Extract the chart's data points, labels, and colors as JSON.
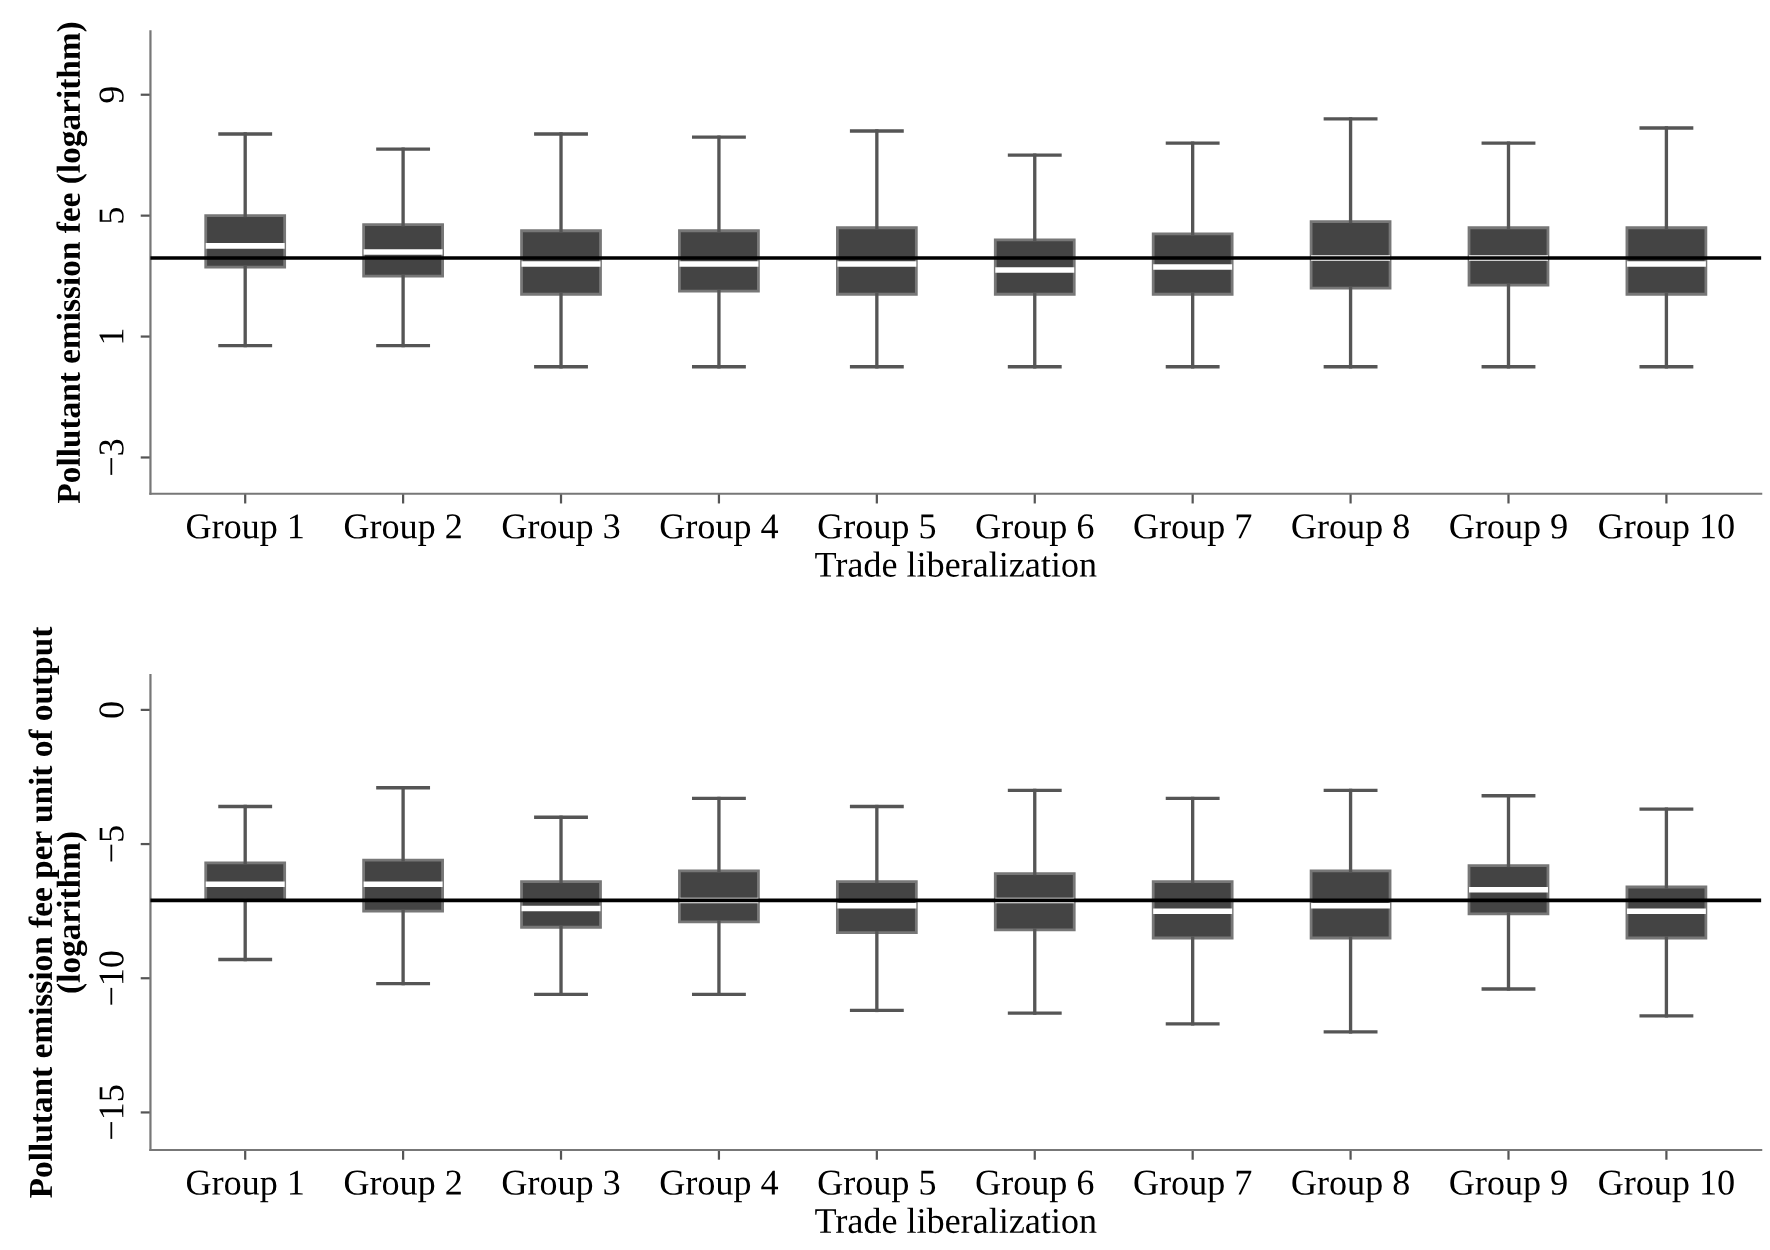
{
  "chart_data": [
    {
      "type": "box",
      "xlabel": "Trade liberalization",
      "ylabel": "Pollutant emission fee (logarithm)",
      "categories": [
        "Group 1",
        "Group 2",
        "Group 3",
        "Group 4",
        "Group 5",
        "Group 6",
        "Group 7",
        "Group 8",
        "Group 9",
        "Group 10"
      ],
      "boxes": [
        {
          "low": 0.7,
          "q1": 3.3,
          "median": 4.0,
          "q3": 5.0,
          "high": 7.7
        },
        {
          "low": 0.7,
          "q1": 3.0,
          "median": 3.8,
          "q3": 4.7,
          "high": 7.2
        },
        {
          "low": 0.0,
          "q1": 2.4,
          "median": 3.4,
          "q3": 4.5,
          "high": 7.7
        },
        {
          "low": 0.0,
          "q1": 2.5,
          "median": 3.4,
          "q3": 4.5,
          "high": 7.6
        },
        {
          "low": 0.0,
          "q1": 2.4,
          "median": 3.4,
          "q3": 4.6,
          "high": 7.8
        },
        {
          "low": 0.0,
          "q1": 2.4,
          "median": 3.2,
          "q3": 4.2,
          "high": 7.0
        },
        {
          "low": 0.0,
          "q1": 2.4,
          "median": 3.3,
          "q3": 4.4,
          "high": 7.4
        },
        {
          "low": 0.0,
          "q1": 2.6,
          "median": 3.6,
          "q3": 4.8,
          "high": 8.2
        },
        {
          "low": 0.0,
          "q1": 2.7,
          "median": 3.6,
          "q3": 4.6,
          "high": 7.4
        },
        {
          "low": 0.0,
          "q1": 2.4,
          "median": 3.4,
          "q3": 4.6,
          "high": 7.9
        }
      ],
      "color": "#444444",
      "ylim": [
        -4.2,
        11.1
      ],
      "yticks": [
        {
          "value": -3,
          "label": "−3"
        },
        1,
        5,
        9
      ],
      "ref_lines": [
        {
          "axis": "y",
          "value": 3.6,
          "color": "#000000"
        }
      ],
      "grid": false,
      "legend": false
    },
    {
      "type": "box",
      "xlabel": "Trade liberalization",
      "ylabel": "Pollutant emission fee per unit of output\n(logarithm)",
      "categories": [
        "Group 1",
        "Group 2",
        "Group 3",
        "Group 4",
        "Group 5",
        "Group 6",
        "Group 7",
        "Group 8",
        "Group 9",
        "Group 10"
      ],
      "boxes": [
        {
          "low": -9.3,
          "q1": -7.1,
          "median": -6.5,
          "q3": -5.7,
          "high": -3.6
        },
        {
          "low": -10.2,
          "q1": -7.5,
          "median": -6.5,
          "q3": -5.6,
          "high": -2.9
        },
        {
          "low": -10.6,
          "q1": -8.1,
          "median": -7.4,
          "q3": -6.4,
          "high": -4.0
        },
        {
          "low": -10.6,
          "q1": -7.9,
          "median": -7.1,
          "q3": -6.0,
          "high": -3.3
        },
        {
          "low": -11.2,
          "q1": -8.3,
          "median": -7.3,
          "q3": -6.4,
          "high": -3.6
        },
        {
          "low": -11.3,
          "q1": -8.2,
          "median": -7.1,
          "q3": -6.1,
          "high": -3.0
        },
        {
          "low": -11.7,
          "q1": -8.5,
          "median": -7.5,
          "q3": -6.4,
          "high": -3.3
        },
        {
          "low": -12.0,
          "q1": -8.5,
          "median": -7.3,
          "q3": -6.0,
          "high": -3.0
        },
        {
          "low": -10.4,
          "q1": -7.6,
          "median": -6.7,
          "q3": -5.8,
          "high": -3.2
        },
        {
          "low": -11.4,
          "q1": -8.5,
          "median": -7.5,
          "q3": -6.6,
          "high": -3.7
        }
      ],
      "color": "#444444",
      "ylim": [
        -16.4,
        1.3
      ],
      "yticks": [
        {
          "value": -15,
          "label": "−15"
        },
        {
          "value": -10,
          "label": "−10"
        },
        {
          "value": -5,
          "label": "−5"
        },
        0
      ],
      "ref_lines": [
        {
          "axis": "y",
          "value": -7.1,
          "color": "#000000"
        }
      ],
      "grid": false,
      "legend": false
    }
  ]
}
